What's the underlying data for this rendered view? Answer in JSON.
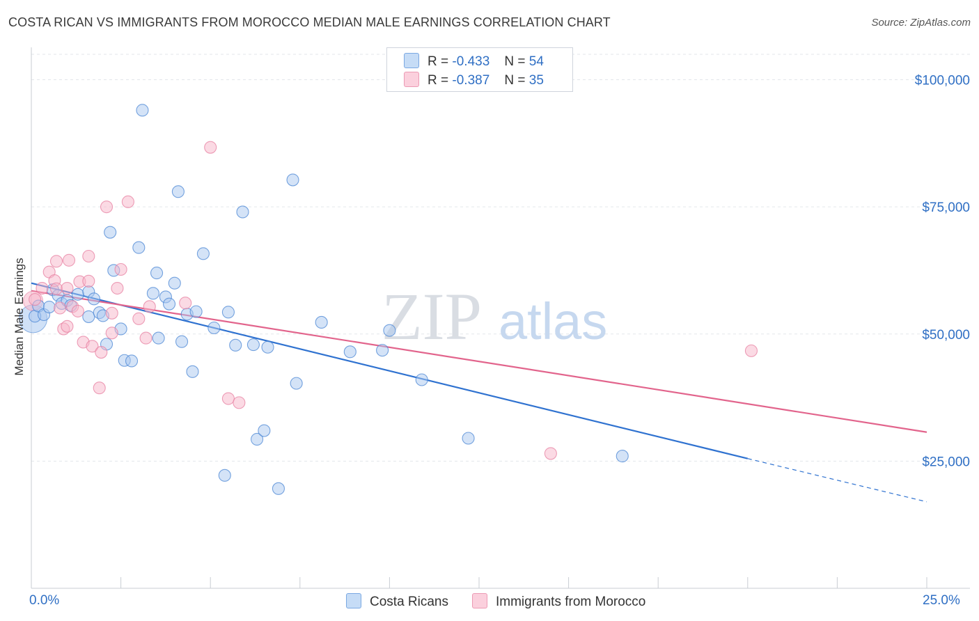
{
  "title": "COSTA RICAN VS IMMIGRANTS FROM MOROCCO MEDIAN MALE EARNINGS CORRELATION CHART",
  "source": "Source: ZipAtlas.com",
  "watermark": {
    "zip": "ZIP",
    "atlas": "atlas"
  },
  "legend": [
    {
      "r_label": "R =",
      "r_value": "-0.433",
      "n_label": "N =",
      "n_value": "54",
      "color": "#a9c8f0"
    },
    {
      "r_label": "R =",
      "r_value": "-0.387",
      "n_label": "N =",
      "n_value": "35",
      "color": "#f7b6ca"
    }
  ],
  "chart_data": {
    "type": "scatter",
    "title": "COSTA RICAN VS IMMIGRANTS FROM MOROCCO MEDIAN MALE EARNINGS CORRELATION CHART",
    "xlabel": "",
    "ylabel": "Median Male Earnings",
    "xlim": [
      0,
      25
    ],
    "ylim": [
      0,
      105000
    ],
    "x_tick_labels": [
      "0.0%",
      "25.0%"
    ],
    "y_ticks": [
      25000,
      50000,
      75000,
      100000
    ],
    "y_tick_labels": [
      "$25,000",
      "$50,000",
      "$75,000",
      "$100,000"
    ],
    "grid": true,
    "legend_position": "bottom",
    "series": [
      {
        "name": "Costa Ricans",
        "color": "#a9c8f0",
        "stroke": "#4a86d4",
        "line_color": "#2f72d0",
        "trend": {
          "x0": 0,
          "y0": 60000,
          "x1": 20,
          "y1": 25500,
          "dash_to_x": 25,
          "dash_to_y": 17000
        },
        "points": [
          [
            0.1,
            53500
          ],
          [
            0.2,
            55500
          ],
          [
            0.35,
            53800
          ],
          [
            0.5,
            55300
          ],
          [
            0.6,
            58700
          ],
          [
            0.75,
            57600
          ],
          [
            0.85,
            56000
          ],
          [
            1.0,
            56600
          ],
          [
            1.1,
            55600
          ],
          [
            1.3,
            57800
          ],
          [
            1.6,
            58300
          ],
          [
            1.6,
            53400
          ],
          [
            1.75,
            56900
          ],
          [
            1.9,
            54200
          ],
          [
            2.0,
            53600
          ],
          [
            2.1,
            48000
          ],
          [
            2.2,
            70000
          ],
          [
            2.3,
            62500
          ],
          [
            2.5,
            51000
          ],
          [
            2.6,
            44800
          ],
          [
            2.8,
            44700
          ],
          [
            3.0,
            67000
          ],
          [
            3.1,
            94000
          ],
          [
            3.4,
            58000
          ],
          [
            3.5,
            62000
          ],
          [
            3.55,
            49200
          ],
          [
            3.75,
            57300
          ],
          [
            3.85,
            55900
          ],
          [
            4.0,
            60000
          ],
          [
            4.1,
            78000
          ],
          [
            4.2,
            48500
          ],
          [
            4.5,
            42600
          ],
          [
            4.35,
            53900
          ],
          [
            4.6,
            54400
          ],
          [
            4.8,
            65800
          ],
          [
            5.1,
            51200
          ],
          [
            5.4,
            22200
          ],
          [
            5.5,
            54300
          ],
          [
            5.7,
            47800
          ],
          [
            5.9,
            74000
          ],
          [
            6.2,
            47900
          ],
          [
            6.3,
            29300
          ],
          [
            6.5,
            31000
          ],
          [
            6.6,
            47400
          ],
          [
            6.9,
            19600
          ],
          [
            7.3,
            80300
          ],
          [
            7.4,
            40300
          ],
          [
            8.1,
            52300
          ],
          [
            8.9,
            46500
          ],
          [
            9.8,
            46800
          ],
          [
            10.0,
            50700
          ],
          [
            10.9,
            41000
          ],
          [
            12.2,
            29500
          ],
          [
            16.5,
            26000
          ]
        ]
      },
      {
        "name": "Immigrants from Morocco",
        "color": "#f7b6ca",
        "stroke": "#e77fa0",
        "line_color": "#e2648c",
        "trend": {
          "x0": 0,
          "y0": 58500,
          "x1": 25,
          "y1": 30700
        },
        "points": [
          [
            0.1,
            56800
          ],
          [
            0.3,
            59000
          ],
          [
            0.5,
            62200
          ],
          [
            0.65,
            60500
          ],
          [
            0.7,
            58900
          ],
          [
            0.7,
            64300
          ],
          [
            0.8,
            55100
          ],
          [
            0.9,
            51000
          ],
          [
            1.0,
            59000
          ],
          [
            1.0,
            51500
          ],
          [
            1.05,
            64500
          ],
          [
            1.15,
            55400
          ],
          [
            1.3,
            54500
          ],
          [
            1.35,
            60300
          ],
          [
            1.45,
            48400
          ],
          [
            1.6,
            65300
          ],
          [
            1.6,
            60400
          ],
          [
            1.7,
            47600
          ],
          [
            1.9,
            39400
          ],
          [
            1.95,
            46400
          ],
          [
            2.1,
            75000
          ],
          [
            2.25,
            54100
          ],
          [
            2.25,
            50200
          ],
          [
            2.4,
            59000
          ],
          [
            2.5,
            62700
          ],
          [
            2.7,
            76000
          ],
          [
            3.0,
            53000
          ],
          [
            3.2,
            49200
          ],
          [
            3.3,
            55400
          ],
          [
            4.3,
            56100
          ],
          [
            5.0,
            86700
          ],
          [
            5.5,
            37300
          ],
          [
            5.8,
            36500
          ],
          [
            14.5,
            26500
          ],
          [
            20.1,
            46700
          ]
        ]
      }
    ]
  }
}
